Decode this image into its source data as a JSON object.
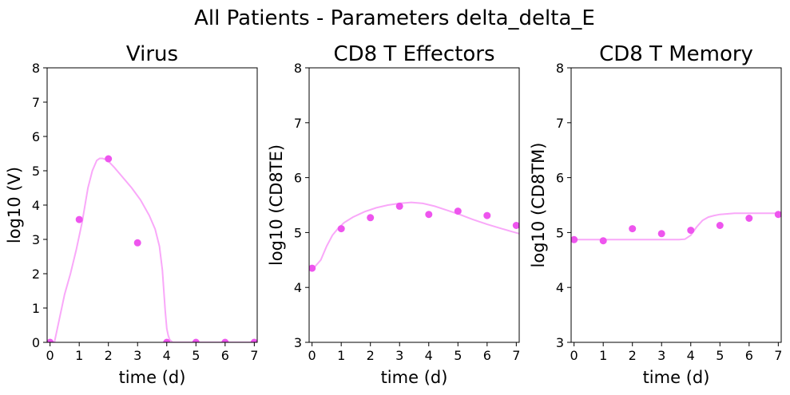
{
  "figure": {
    "suptitle": "All Patients - Parameters delta_delta_E"
  },
  "style": {
    "point_color": "#ee55ee",
    "line_color": "#f9a8f9"
  },
  "chart_data": [
    {
      "type": "scatter",
      "title": "Virus",
      "xlabel": "time (d)",
      "ylabel": "log10 (V)",
      "xlim": [
        -0.1,
        7.1
      ],
      "ylim": [
        0,
        8
      ],
      "xticks": [
        "0",
        "1",
        "2",
        "3",
        "4",
        "5",
        "6",
        "7"
      ],
      "yticks": [
        "0",
        "1",
        "2",
        "3",
        "4",
        "5",
        "6",
        "7",
        "8"
      ],
      "points": {
        "x": [
          0,
          1,
          2,
          3,
          4,
          5,
          6,
          7
        ],
        "y": [
          0,
          3.58,
          5.35,
          2.9,
          0,
          0,
          0,
          0
        ]
      },
      "fit_line": {
        "x": [
          0.15,
          0.3,
          0.5,
          0.7,
          0.9,
          1.1,
          1.3,
          1.45,
          1.6,
          1.7,
          1.8,
          1.9,
          2.0,
          2.2,
          2.5,
          2.8,
          3.1,
          3.4,
          3.6,
          3.75,
          3.85,
          3.9,
          3.95,
          4.0,
          4.05,
          4.1,
          4.2,
          4.5,
          5.0,
          6.0,
          7.0
        ],
        "y": [
          0,
          0.6,
          1.4,
          2.0,
          2.7,
          3.5,
          4.5,
          5.0,
          5.3,
          5.36,
          5.36,
          5.33,
          5.28,
          5.1,
          4.8,
          4.5,
          4.15,
          3.7,
          3.3,
          2.8,
          2.1,
          1.5,
          0.9,
          0.4,
          0.2,
          0.08,
          0,
          0,
          0,
          0,
          0
        ]
      }
    },
    {
      "type": "scatter",
      "title": "CD8 T Effectors",
      "xlabel": "time (d)",
      "ylabel": "log10 (CD8TE)",
      "xlim": [
        -0.1,
        7.1
      ],
      "ylim": [
        3,
        8
      ],
      "xticks": [
        "0",
        "1",
        "2",
        "3",
        "4",
        "5",
        "6",
        "7"
      ],
      "yticks": [
        "3",
        "4",
        "5",
        "6",
        "7",
        "8"
      ],
      "points": {
        "x": [
          0,
          1,
          2,
          3,
          4,
          5,
          6,
          7
        ],
        "y": [
          4.35,
          5.07,
          5.27,
          5.48,
          5.33,
          5.39,
          5.31,
          5.13
        ]
      },
      "fit_line": {
        "x": [
          -0.1,
          0.1,
          0.3,
          0.5,
          0.7,
          0.9,
          1.1,
          1.4,
          1.8,
          2.2,
          2.6,
          3.0,
          3.4,
          3.8,
          4.2,
          4.6,
          5.0,
          5.5,
          6.0,
          6.5,
          7.1
        ],
        "y": [
          4.35,
          4.38,
          4.5,
          4.75,
          4.95,
          5.08,
          5.18,
          5.28,
          5.38,
          5.45,
          5.5,
          5.53,
          5.55,
          5.53,
          5.48,
          5.41,
          5.34,
          5.24,
          5.15,
          5.07,
          4.98
        ]
      }
    },
    {
      "type": "scatter",
      "title": "CD8 T Memory",
      "xlabel": "time (d)",
      "ylabel": "log10 (CD8TM)",
      "xlim": [
        -0.1,
        7.1
      ],
      "ylim": [
        3,
        8
      ],
      "xticks": [
        "0",
        "1",
        "2",
        "3",
        "4",
        "5",
        "6",
        "7"
      ],
      "yticks": [
        "3",
        "4",
        "5",
        "6",
        "7",
        "8"
      ],
      "points": {
        "x": [
          0,
          1,
          2,
          3,
          4,
          5,
          6,
          7
        ],
        "y": [
          4.87,
          4.85,
          5.07,
          4.98,
          5.04,
          5.13,
          5.26,
          5.33
        ]
      },
      "fit_line": {
        "x": [
          -0.1,
          0.5,
          1.0,
          2.0,
          3.0,
          3.6,
          3.8,
          4.0,
          4.2,
          4.4,
          4.6,
          4.8,
          5.0,
          5.5,
          6.0,
          6.5,
          7.1
        ],
        "y": [
          4.87,
          4.87,
          4.87,
          4.87,
          4.87,
          4.87,
          4.88,
          4.95,
          5.1,
          5.22,
          5.28,
          5.31,
          5.33,
          5.35,
          5.35,
          5.35,
          5.35
        ]
      }
    }
  ]
}
